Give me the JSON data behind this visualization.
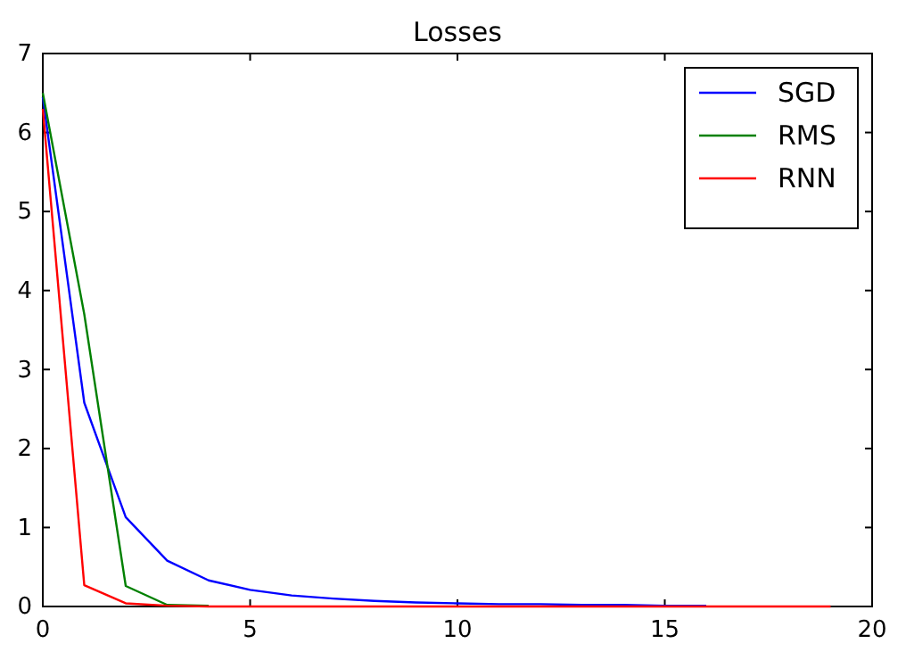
{
  "chart_data": {
    "type": "line",
    "title": "Losses",
    "x": [
      0,
      1,
      2,
      3,
      4,
      5,
      6,
      7,
      8,
      9,
      10,
      11,
      12,
      13,
      14,
      15,
      16,
      17,
      18,
      19
    ],
    "series": [
      {
        "name": "SGD",
        "color": "#0000ff",
        "values": [
          6.45,
          2.58,
          1.13,
          0.58,
          0.33,
          0.21,
          0.14,
          0.1,
          0.07,
          0.05,
          0.04,
          0.03,
          0.03,
          0.02,
          0.02,
          0.01,
          0.01,
          null,
          null,
          null
        ]
      },
      {
        "name": "RMS",
        "color": "#008000",
        "values": [
          6.5,
          3.7,
          0.26,
          0.02,
          0.01,
          null,
          null,
          null,
          null,
          null,
          null,
          null,
          null,
          null,
          null,
          null,
          null,
          null,
          null,
          null
        ]
      },
      {
        "name": "RNN",
        "color": "#ff0000",
        "values": [
          6.3,
          0.27,
          0.04,
          0.01,
          0,
          0,
          0,
          0,
          0,
          0,
          0,
          0,
          0,
          0,
          0,
          0,
          0,
          0,
          0,
          0
        ]
      }
    ],
    "xlim": [
      0,
      20
    ],
    "xticks": [
      0,
      5,
      10,
      15,
      20
    ],
    "ylim": [
      0,
      7
    ],
    "yticks": [
      0,
      1,
      2,
      3,
      4,
      5,
      6,
      7
    ],
    "legend": "top right",
    "grid": false
  }
}
